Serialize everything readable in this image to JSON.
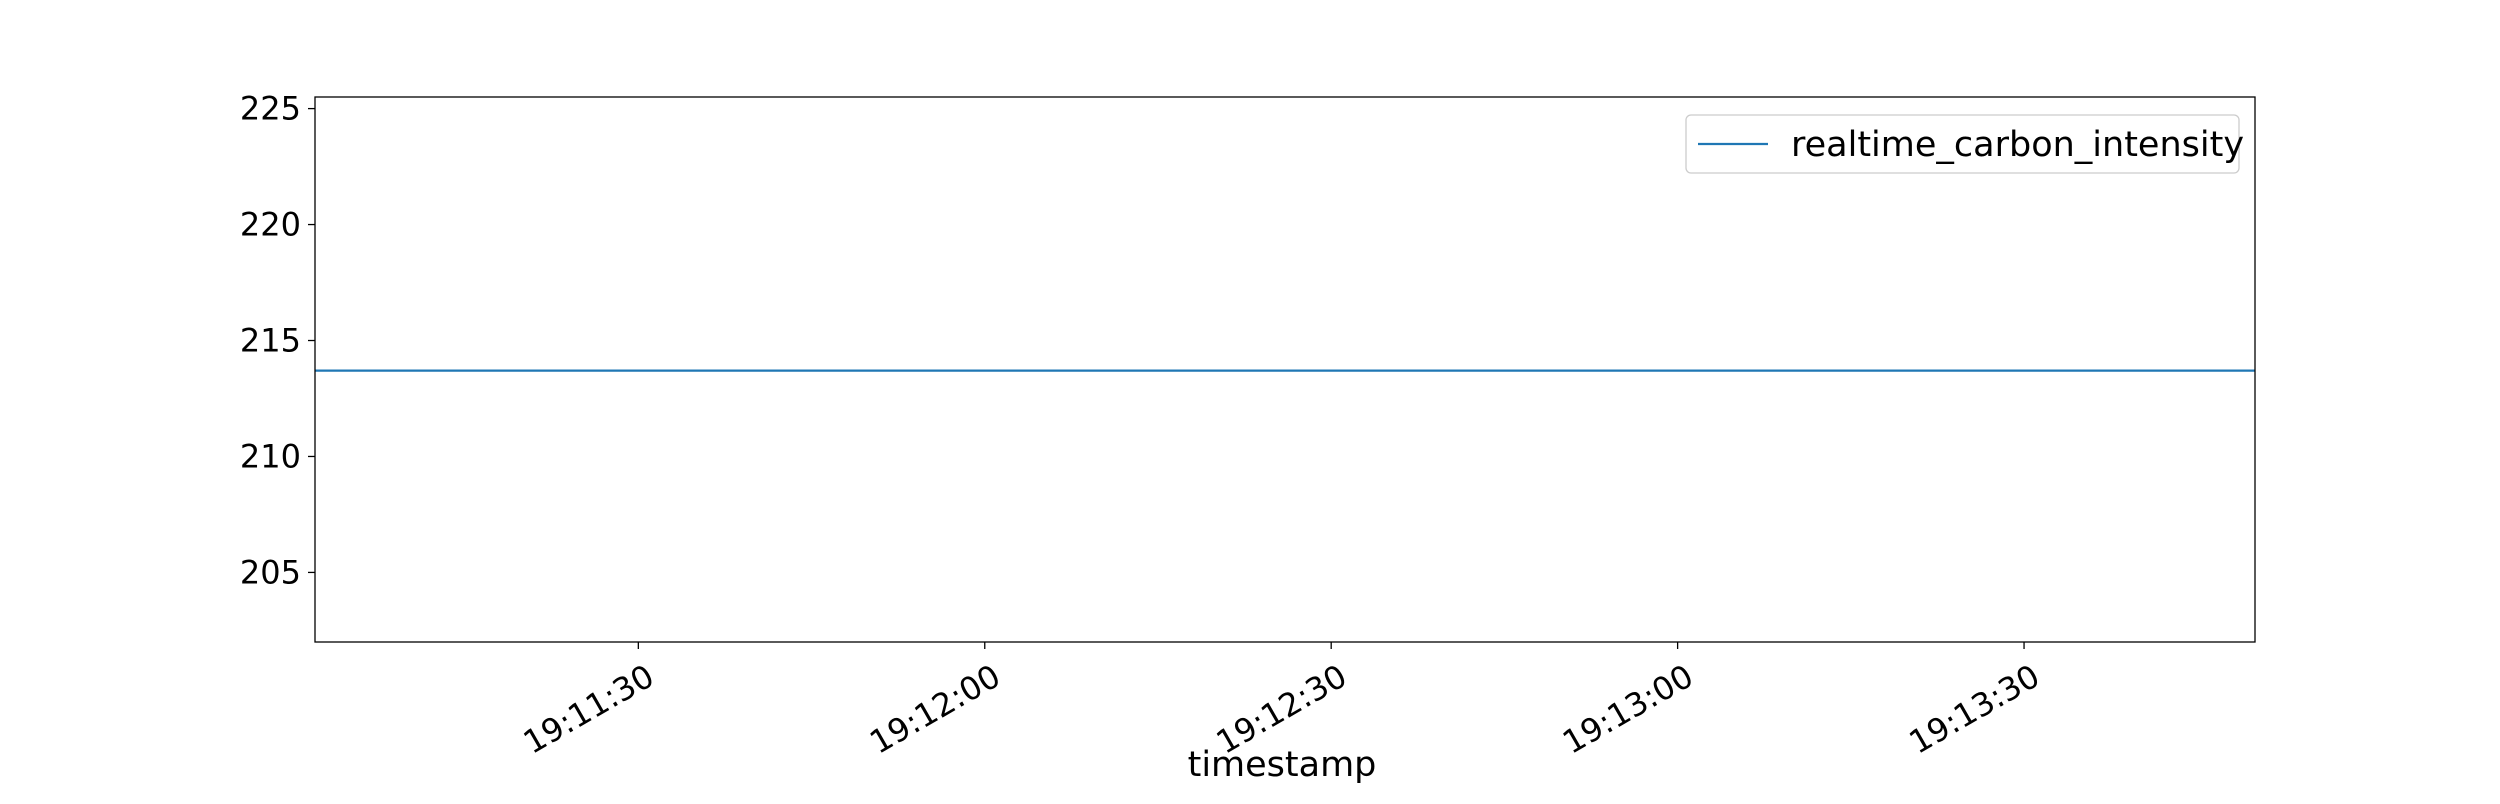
{
  "chart_data": {
    "type": "line",
    "title": "",
    "xlabel": "timestamp",
    "ylabel": "",
    "x_range": [
      "19:11:02",
      "19:13:50"
    ],
    "ylim": [
      202.0,
      225.5
    ],
    "x_ticks": [
      "19:11:30",
      "19:12:00",
      "19:12:30",
      "19:13:00",
      "19:13:30"
    ],
    "y_ticks": [
      205,
      210,
      215,
      220,
      225
    ],
    "series": [
      {
        "name": "realtime_carbon_intensity",
        "color": "#1f77b4",
        "x": [
          "19:11:02",
          "19:13:50"
        ],
        "y": [
          213.7,
          213.7
        ]
      }
    ],
    "legend_position": "upper right",
    "grid": false
  }
}
